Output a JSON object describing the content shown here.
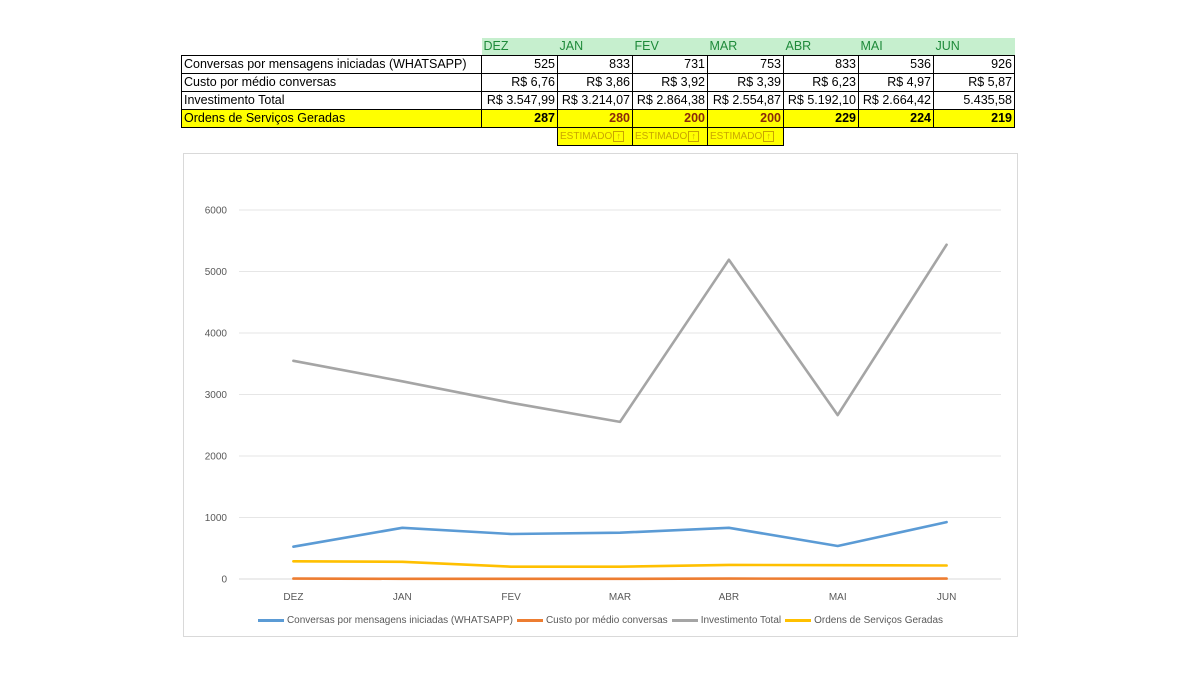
{
  "table": {
    "months": [
      "DEZ",
      "JAN",
      "FEV",
      "MAR",
      "ABR",
      "MAI",
      "JUN"
    ],
    "rows": [
      {
        "label": "Conversas por mensagens iniciadas (WHATSAPP)",
        "values": [
          "525",
          "833",
          "731",
          "753",
          "833",
          "536",
          "926"
        ]
      },
      {
        "label": "Custo por médio conversas",
        "values": [
          "R$ 6,76",
          "R$ 3,86",
          "R$ 3,92",
          "R$ 3,39",
          "R$ 6,23",
          "R$ 4,97",
          "R$ 5,87"
        ]
      },
      {
        "label": "Investimento Total",
        "values": [
          "R$ 3.547,99",
          "R$ 3.214,07",
          "R$ 2.864,38",
          "R$ 2.554,87",
          "R$ 5.192,10",
          "R$ 2.664,42",
          "5.435,58"
        ]
      },
      {
        "label": "Ordens de Serviços Geradas",
        "values": [
          "287",
          "280",
          "200",
          "200",
          "229",
          "224",
          "219"
        ]
      }
    ],
    "estimated_label": "ESTIMADO",
    "estimated_icon": "arrow-up-boxed-icon"
  },
  "colors": {
    "series": [
      "#5b9bd5",
      "#ed7d31",
      "#a5a5a5",
      "#ffc000"
    ],
    "header_bg": "#c6efce",
    "header_text": "#1e8a3a",
    "highlight": "#ffff00"
  },
  "chart_data": {
    "type": "line",
    "categories": [
      "DEZ",
      "JAN",
      "FEV",
      "MAR",
      "ABR",
      "MAI",
      "JUN"
    ],
    "y_ticks": [
      "0",
      "1000",
      "2000",
      "3000",
      "4000",
      "5000",
      "6000"
    ],
    "ylim": [
      0,
      6000
    ],
    "grid": true,
    "legend_position": "bottom",
    "series": [
      {
        "name": "Conversas por mensagens iniciadas (WHATSAPP)",
        "values": [
          525,
          833,
          731,
          753,
          833,
          536,
          926
        ]
      },
      {
        "name": "Custo por médio conversas",
        "values": [
          6.76,
          3.86,
          3.92,
          3.39,
          6.23,
          4.97,
          5.87
        ]
      },
      {
        "name": "Investimento Total",
        "values": [
          3547.99,
          3214.07,
          2864.38,
          2554.87,
          5192.1,
          2664.42,
          5435.58
        ]
      },
      {
        "name": "Ordens de Serviços Geradas",
        "values": [
          287,
          280,
          200,
          200,
          229,
          224,
          219
        ]
      }
    ]
  }
}
